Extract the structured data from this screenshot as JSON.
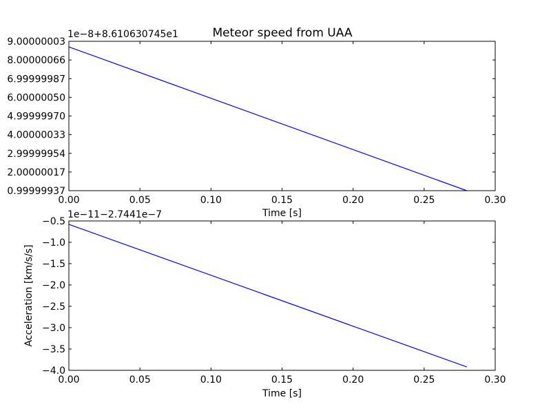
{
  "figure": {
    "title": "Meteor speed from  UAA"
  },
  "chart_data": [
    {
      "type": "line",
      "title": "Meteor speed from  UAA",
      "xlabel": "Time [s]",
      "ylabel": "",
      "offset_text": "1e−8+8.610630745e1",
      "xlim": [
        0,
        0.3
      ],
      "ylim": [
        0.99999937,
        9.00000003
      ],
      "x_ticks": [
        0,
        0.05,
        0.1,
        0.15,
        0.2,
        0.25,
        0.3
      ],
      "x_tick_labels": [
        "0.00",
        "0.05",
        "0.10",
        "0.15",
        "0.20",
        "0.25",
        "0.30"
      ],
      "y_ticks": [
        0.99999937,
        2.00000017,
        2.99999954,
        4.00000033,
        4.9999997,
        6.0000005,
        6.99999987,
        8.00000066,
        9.00000003
      ],
      "y_tick_labels": [
        "0.99999937",
        "2.00000017",
        "2.99999954",
        "4.00000033",
        "4.99999970",
        "6.00000050",
        "6.99999987",
        "8.00000066",
        "9.00000003"
      ],
      "grid": false,
      "series": [
        {
          "color": "#0000ff",
          "x": [
            0,
            0.28
          ],
          "y": [
            8.7,
            0.99999937
          ]
        }
      ]
    },
    {
      "type": "line",
      "title": "",
      "xlabel": "Time [s]",
      "ylabel": "Acceleration [km/s/s]",
      "offset_text": "1e−11−2.7441e−7",
      "xlim": [
        0,
        0.3
      ],
      "ylim": [
        -4.0,
        -0.5
      ],
      "x_ticks": [
        0,
        0.05,
        0.1,
        0.15,
        0.2,
        0.25,
        0.3
      ],
      "x_tick_labels": [
        "0.00",
        "0.05",
        "0.10",
        "0.15",
        "0.20",
        "0.25",
        "0.30"
      ],
      "y_ticks": [
        -4.0,
        -3.5,
        -3.0,
        -2.5,
        -2.0,
        -1.5,
        -1.0,
        -0.5
      ],
      "y_tick_labels": [
        "−4.0",
        "−3.5",
        "−3.0",
        "−2.5",
        "−2.0",
        "−1.5",
        "−1.0",
        "−0.5"
      ],
      "grid": false,
      "series": [
        {
          "color": "#0000ff",
          "x": [
            0,
            0.28
          ],
          "y": [
            -0.58,
            -3.92
          ]
        }
      ]
    }
  ]
}
